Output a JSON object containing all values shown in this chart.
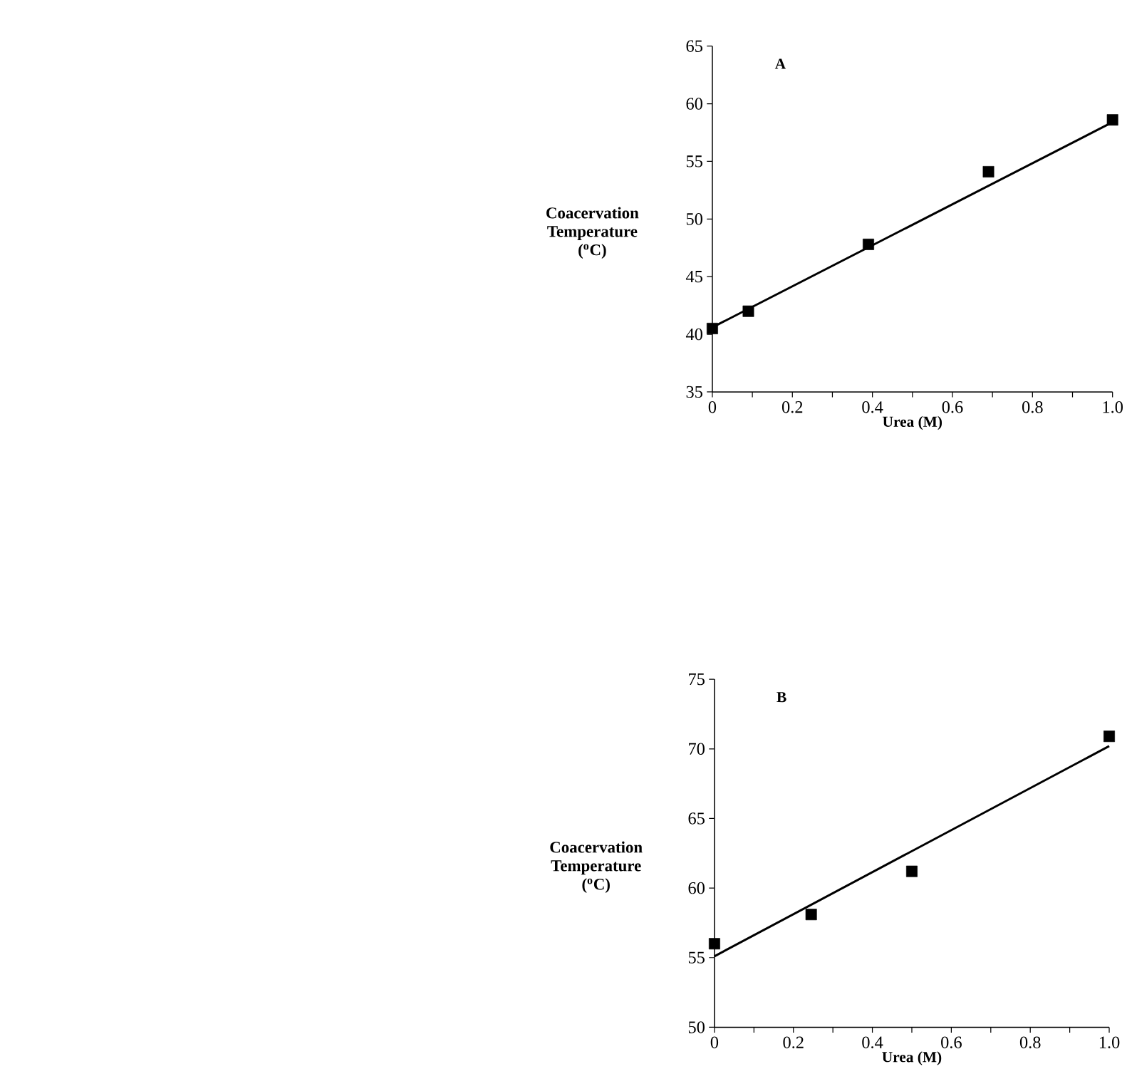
{
  "chart_data": [
    {
      "type": "scatter",
      "title": "A",
      "xlabel": "Urea (M)",
      "ylabel": "Coacervation Temperature ($^{o}$C)",
      "marker": "square",
      "line_style": "solid",
      "xlim": [
        0,
        1
      ],
      "ylim": [
        35,
        65
      ],
      "xticks": [
        0,
        {
          "value": 0.1,
          "label": null
        },
        0.2,
        {
          "value": 0.3,
          "label": null
        },
        0.4,
        {
          "value": 0.5,
          "label": null
        },
        0.6,
        {
          "value": 0.7,
          "label": null
        },
        0.8,
        {
          "value": 0.9,
          "label": null
        },
        {
          "value": 1,
          "label": "1.0"
        }
      ],
      "yticks": [
        35,
        40,
        45,
        50,
        55,
        60,
        65
      ],
      "series": [
        {
          "color": "#000000",
          "x": [
            0,
            0.09,
            0.39,
            0.69,
            1.0
          ],
          "values": [
            40.5,
            42,
            47.8,
            54.1,
            58.6
          ]
        },
        {
          "type": "line",
          "marker": "none",
          "color": "#000000",
          "x": [
            0,
            1
          ],
          "values": [
            40.6,
            58.4
          ]
        }
      ]
    },
    {
      "type": "scatter",
      "title": "B",
      "xlabel": "Urea (M)",
      "ylabel": "Coacervation Temperature ($^{o}$C)",
      "marker": "square",
      "line_style": "solid",
      "xlim": [
        0,
        1
      ],
      "ylim": [
        50,
        75
      ],
      "xticks": [
        0,
        {
          "value": 0.1,
          "label": null
        },
        0.2,
        {
          "value": 0.3,
          "label": null
        },
        0.4,
        {
          "value": 0.5,
          "label": null
        },
        0.6,
        {
          "value": 0.7,
          "label": null
        },
        0.8,
        {
          "value": 0.9,
          "label": null
        },
        {
          "value": 1,
          "label": "1.0"
        }
      ],
      "yticks": [
        50,
        55,
        60,
        65,
        70,
        75
      ],
      "series": [
        {
          "color": "#000000",
          "x": [
            0,
            0.245,
            0.5,
            1.0
          ],
          "values": [
            56,
            58.1,
            61.2,
            70.9
          ]
        },
        {
          "type": "line",
          "marker": "none",
          "color": "#000000",
          "x": [
            0,
            1
          ],
          "values": [
            55.1,
            70.2
          ]
        }
      ]
    }
  ]
}
